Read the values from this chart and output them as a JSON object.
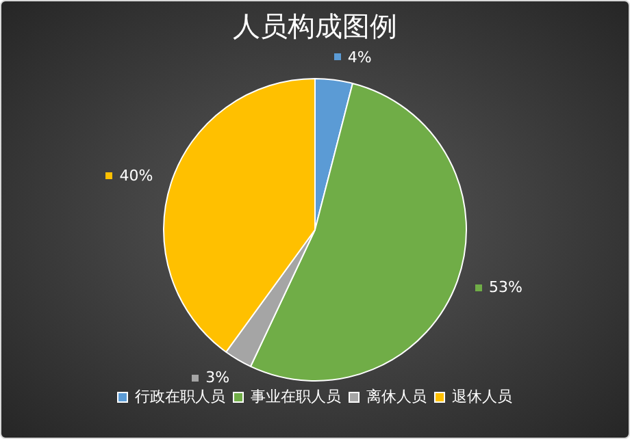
{
  "chart_data": {
    "type": "pie",
    "title": "人员构成图例",
    "categories": [
      "行政在职人员",
      "事业在职人员",
      "离休人员",
      "退休人员"
    ],
    "values": [
      4,
      53,
      3,
      40
    ],
    "value_labels": [
      "4%",
      "53%",
      "3%",
      "40%"
    ],
    "colors": [
      "#5b9bd5",
      "#70ad47",
      "#a5a5a5",
      "#ffc000"
    ],
    "legend": "bottom"
  }
}
